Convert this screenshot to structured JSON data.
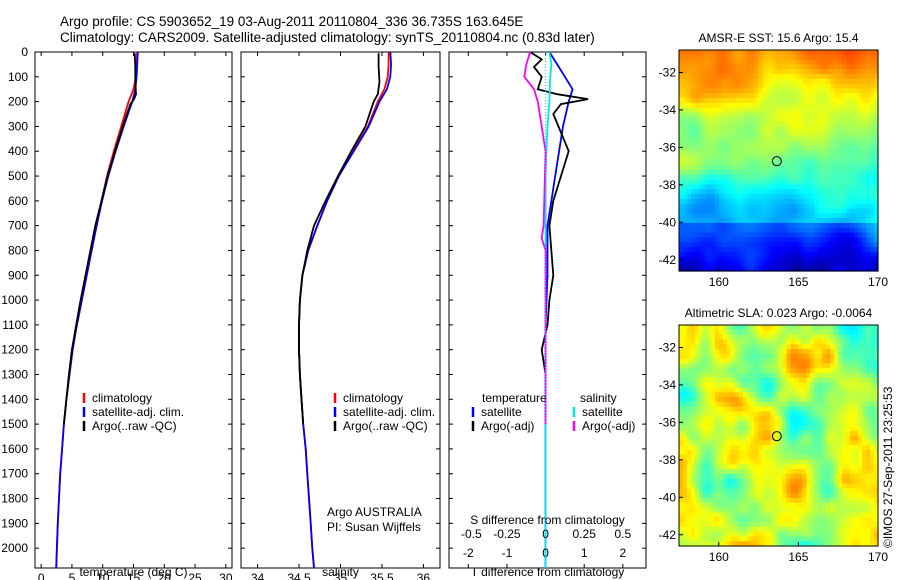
{
  "header": {
    "line1": "Argo profile: CS 5903652_19 03-Aug-2011 20110804_336 36.735S 163.645E",
    "line2": "Climatology: CARS2009. Satellite-adjusted climatology: synTS_20110804.nc (0.83d later)"
  },
  "side_stamp": "©IMOS 27-Sep-2011 23:25:53",
  "colors": {
    "climatology": "#ff0000",
    "satellite": "#0000ff",
    "argo": "#000000",
    "s_satellite": "#00e5ee",
    "s_argo": "#ff00ff"
  },
  "chart_data": [
    {
      "type": "line",
      "id": "temperature",
      "xlabel": "temperature (deg C)",
      "ylabel": "",
      "xlim": [
        -1,
        31
      ],
      "ylim": [
        2080,
        0
      ],
      "xticks": [
        "0",
        "5",
        "10",
        "15",
        "20",
        "25",
        "30"
      ],
      "yticks": [
        "0",
        "100",
        "200",
        "300",
        "400",
        "500",
        "600",
        "700",
        "800",
        "900",
        "1000",
        "1100",
        "1200",
        "1300",
        "1400",
        "1500",
        "1600",
        "1700",
        "1800",
        "1900",
        "2000"
      ],
      "legend": [
        "climatology",
        "satellite-adj. clim.",
        "Argo(..raw -QC)"
      ],
      "legend_position": "lower-center",
      "series": [
        {
          "name": "climatology",
          "color": "#ff0000",
          "points": [
            [
              15.6,
              0
            ],
            [
              15.5,
              50
            ],
            [
              15.4,
              100
            ],
            [
              15.0,
              150
            ],
            [
              14.2,
              200
            ],
            [
              13.0,
              300
            ],
            [
              11.8,
              400
            ],
            [
              10.7,
              500
            ],
            [
              9.8,
              600
            ],
            [
              9.0,
              700
            ],
            [
              8.2,
              800
            ],
            [
              7.4,
              900
            ],
            [
              6.6,
              1000
            ],
            [
              5.8,
              1100
            ],
            [
              5.1,
              1200
            ],
            [
              4.6,
              1300
            ],
            [
              4.1,
              1400
            ],
            [
              3.7,
              1500
            ],
            [
              3.4,
              1600
            ],
            [
              3.1,
              1700
            ],
            [
              2.9,
              1800
            ],
            [
              2.7,
              1900
            ],
            [
              2.55,
              2000
            ],
            [
              2.45,
              2080
            ]
          ]
        },
        {
          "name": "satellite-adj. clim.",
          "color": "#0000ff",
          "points": [
            [
              15.7,
              0
            ],
            [
              15.6,
              50
            ],
            [
              15.5,
              100
            ],
            [
              15.3,
              150
            ],
            [
              14.8,
              200
            ],
            [
              13.4,
              300
            ],
            [
              12.1,
              400
            ],
            [
              10.9,
              500
            ],
            [
              9.9,
              600
            ],
            [
              9.0,
              700
            ],
            [
              8.2,
              800
            ],
            [
              7.4,
              900
            ],
            [
              6.6,
              1000
            ],
            [
              5.8,
              1100
            ],
            [
              5.1,
              1200
            ],
            [
              4.6,
              1300
            ],
            [
              4.1,
              1400
            ],
            [
              3.7,
              1500
            ],
            [
              3.4,
              1600
            ],
            [
              3.1,
              1700
            ],
            [
              2.9,
              1800
            ],
            [
              2.7,
              1900
            ],
            [
              2.55,
              2000
            ],
            [
              2.45,
              2080
            ]
          ]
        },
        {
          "name": "Argo(..raw -QC)",
          "color": "#000000",
          "points": [
            [
              15.2,
              5
            ],
            [
              15.3,
              60
            ],
            [
              15.3,
              120
            ],
            [
              15.4,
              170
            ],
            [
              15.1,
              190
            ],
            [
              14.5,
              210
            ],
            [
              13.5,
              280
            ],
            [
              12.0,
              400
            ],
            [
              10.8,
              500
            ],
            [
              9.8,
              600
            ],
            [
              8.8,
              700
            ],
            [
              8.0,
              800
            ],
            [
              7.2,
              900
            ],
            [
              6.4,
              1000
            ],
            [
              5.7,
              1100
            ],
            [
              5.0,
              1200
            ],
            [
              4.5,
              1300
            ],
            [
              4.1,
              1400
            ],
            [
              3.7,
              1500
            ]
          ]
        }
      ]
    },
    {
      "type": "line",
      "id": "salinity",
      "xlabel": "salinity",
      "xlim": [
        33.8,
        36.2
      ],
      "ylim": [
        2080,
        0
      ],
      "xticks": [
        "34",
        "34.5",
        "35",
        "35.5",
        "36"
      ],
      "legend": [
        "climatology",
        "satellite-adj. clim.",
        "Argo(..raw -QC)"
      ],
      "legend_position": "lower-right",
      "annotation": [
        "Argo AUSTRALIA",
        "PI: Susan Wijffels"
      ],
      "series": [
        {
          "name": "climatology",
          "color": "#ff0000",
          "points": [
            [
              35.58,
              0
            ],
            [
              35.58,
              50
            ],
            [
              35.57,
              100
            ],
            [
              35.53,
              150
            ],
            [
              35.45,
              200
            ],
            [
              35.33,
              300
            ],
            [
              35.15,
              400
            ],
            [
              34.98,
              500
            ],
            [
              34.84,
              600
            ],
            [
              34.72,
              700
            ],
            [
              34.61,
              800
            ],
            [
              34.54,
              900
            ],
            [
              34.51,
              1000
            ],
            [
              34.5,
              1100
            ],
            [
              34.5,
              1200
            ],
            [
              34.51,
              1300
            ],
            [
              34.53,
              1400
            ],
            [
              34.55,
              1500
            ],
            [
              34.58,
              1600
            ],
            [
              34.6,
              1700
            ],
            [
              34.62,
              1800
            ],
            [
              34.64,
              1900
            ],
            [
              34.66,
              2000
            ],
            [
              34.68,
              2080
            ]
          ]
        },
        {
          "name": "satellite-adj. clim.",
          "color": "#0000ff",
          "points": [
            [
              35.6,
              0
            ],
            [
              35.61,
              50
            ],
            [
              35.6,
              100
            ],
            [
              35.56,
              150
            ],
            [
              35.47,
              200
            ],
            [
              35.34,
              300
            ],
            [
              35.16,
              400
            ],
            [
              34.98,
              500
            ],
            [
              34.84,
              600
            ],
            [
              34.72,
              700
            ],
            [
              34.61,
              800
            ],
            [
              34.54,
              900
            ],
            [
              34.51,
              1000
            ],
            [
              34.5,
              1100
            ],
            [
              34.5,
              1200
            ],
            [
              34.51,
              1300
            ],
            [
              34.53,
              1400
            ],
            [
              34.55,
              1500
            ],
            [
              34.58,
              1600
            ],
            [
              34.6,
              1700
            ],
            [
              34.62,
              1800
            ],
            [
              34.64,
              1900
            ],
            [
              34.66,
              2000
            ],
            [
              34.68,
              2080
            ]
          ]
        },
        {
          "name": "Argo(..raw -QC)",
          "color": "#000000",
          "points": [
            [
              35.46,
              5
            ],
            [
              35.46,
              60
            ],
            [
              35.47,
              120
            ],
            [
              35.45,
              170
            ],
            [
              35.4,
              200
            ],
            [
              35.3,
              300
            ],
            [
              35.13,
              400
            ],
            [
              34.97,
              500
            ],
            [
              34.82,
              600
            ],
            [
              34.68,
              700
            ],
            [
              34.6,
              800
            ],
            [
              34.54,
              900
            ],
            [
              34.51,
              1000
            ],
            [
              34.5,
              1100
            ],
            [
              34.5,
              1200
            ],
            [
              34.51,
              1300
            ],
            [
              34.53,
              1400
            ],
            [
              34.55,
              1500
            ]
          ]
        }
      ]
    },
    {
      "type": "line",
      "id": "difference",
      "xlabel": "T difference from climatology",
      "xlabel_top": "S difference from climatology",
      "xlim": [
        -2.5,
        2.6
      ],
      "ylim": [
        2080,
        0
      ],
      "xticks": [
        "-2",
        "-1",
        "0",
        "1",
        "2"
      ],
      "xticks_s": [
        "-0.5",
        "-0.25",
        "0",
        "0.25",
        "0.5"
      ],
      "legend_t_title": "temperature",
      "legend_s_title": "salinity",
      "legend_t": [
        "satellite",
        "Argo(-adj)"
      ],
      "legend_s": [
        "satellite",
        "Argo(-adj)"
      ],
      "legend_position": "lower-center",
      "series": [
        {
          "name": "T satellite",
          "color": "#0000ff",
          "points": [
            [
              0.1,
              0
            ],
            [
              0.3,
              50
            ],
            [
              0.5,
              100
            ],
            [
              0.7,
              150
            ],
            [
              0.6,
              200
            ],
            [
              0.45,
              300
            ],
            [
              0.35,
              400
            ],
            [
              0.25,
              500
            ],
            [
              0.15,
              600
            ],
            [
              0.05,
              700
            ],
            [
              0.05,
              900
            ],
            [
              0,
              1100
            ],
            [
              0,
              2080
            ]
          ]
        },
        {
          "name": "T Argo(-adj)",
          "color": "#000000",
          "points": [
            [
              -0.4,
              0
            ],
            [
              -0.1,
              30
            ],
            [
              -0.3,
              60
            ],
            [
              -0.1,
              100
            ],
            [
              -0.2,
              150
            ],
            [
              0.3,
              170
            ],
            [
              1.1,
              190
            ],
            [
              0.4,
              210
            ],
            [
              0.2,
              250
            ],
            [
              0.6,
              400
            ],
            [
              0.4,
              500
            ],
            [
              0.2,
              600
            ],
            [
              0.1,
              700
            ],
            [
              0.2,
              900
            ],
            [
              0.1,
              1000
            ],
            [
              0.05,
              1100
            ],
            [
              -0.1,
              1200
            ],
            [
              0,
              1300
            ],
            [
              0,
              1500
            ]
          ]
        },
        {
          "name": "S satellite",
          "color": "#00e5ee",
          "points": [
            [
              0.1,
              0
            ],
            [
              0.15,
              50
            ],
            [
              0.12,
              100
            ],
            [
              0.1,
              200
            ],
            [
              0.05,
              300
            ],
            [
              0.02,
              400
            ],
            [
              0,
              500
            ],
            [
              0,
              2080
            ]
          ]
        },
        {
          "name": "S Argo(-adj)",
          "color": "#ff00ff",
          "points": [
            [
              -0.4,
              0
            ],
            [
              -0.5,
              50
            ],
            [
              -0.55,
              100
            ],
            [
              -0.3,
              150
            ],
            [
              -0.2,
              200
            ],
            [
              -0.1,
              300
            ],
            [
              0,
              400
            ],
            [
              -0.05,
              700
            ],
            [
              -0.1,
              750
            ],
            [
              0,
              800
            ],
            [
              0,
              1500
            ]
          ]
        }
      ]
    },
    {
      "type": "heatmap",
      "id": "sst_map",
      "title": "AMSR-E SST: 15.6 Argo: 15.4",
      "xlim": [
        157.5,
        170
      ],
      "ylim": [
        -42.6,
        -30.8
      ],
      "xticks": [
        "160",
        "165",
        "170"
      ],
      "yticks": [
        "-32",
        "-34",
        "-36",
        "-38",
        "-40",
        "-42"
      ],
      "marker": {
        "lon": 163.645,
        "lat": -36.735
      }
    },
    {
      "type": "heatmap",
      "id": "sla_map",
      "title": "Altimetric SLA: 0.023 Argo: -0.0064",
      "xlim": [
        157.5,
        170
      ],
      "ylim": [
        -42.6,
        -30.8
      ],
      "xticks": [
        "160",
        "165",
        "170"
      ],
      "yticks": [
        "-32",
        "-34",
        "-36",
        "-38",
        "-40",
        "-42"
      ],
      "marker": {
        "lon": 163.645,
        "lat": -36.735
      }
    }
  ]
}
